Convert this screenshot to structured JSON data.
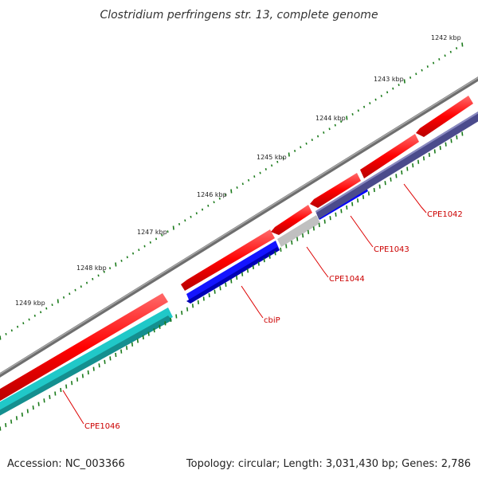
{
  "title": "Clostridium perfringens str. 13, complete genome",
  "footer": {
    "accession": "Accession: NC_003366",
    "summary": "Topology: circular; Length: 3,031,430 bp; Genes: 2,786"
  },
  "ruler_labels": [
    "1242 kbp",
    "1243 kbp",
    "1244 kbp",
    "1245 kbp",
    "1246 kbp",
    "1247 kbp",
    "1248 kbp",
    "1249 kbp"
  ],
  "gene_labels": [
    "CPE1042",
    "CPE1043",
    "CPE1044",
    "cbiP",
    "CPE1046"
  ],
  "colors": {
    "backbone": "#808080",
    "cds_forward": "#ff0000",
    "gene_blue": "#0000ff",
    "gene_navy": "#4b4b8c",
    "gene_grey": "#c0c0c0",
    "gene_cyan": "#20c8c8",
    "tick_green": "#1a7a1a",
    "label_red": "#cc0000"
  }
}
